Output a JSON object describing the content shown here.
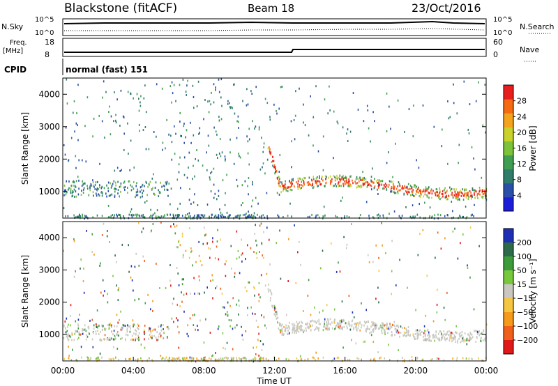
{
  "header": {
    "station": "Blackstone (fitACF)",
    "beam": "Beam 18",
    "date": "23/Oct/2016"
  },
  "panels": {
    "nsky_label": "N.Sky",
    "nsearch_label": "N.Search",
    "nsky_ticks": [
      "10^5",
      "10^0"
    ],
    "nsearch_ticks": [
      "10^5",
      "10^0"
    ],
    "freq_label": "Freq.",
    "freq_unit": "[MHz]",
    "freq_ticks": [
      "18",
      "8"
    ],
    "nave_label": "Nave",
    "nave_ticks": [
      "60",
      "0"
    ],
    "cpid_label": "CPID",
    "cpid_value": "normal (fast) 151"
  },
  "chart_data": [
    {
      "type": "heatmap",
      "title": "",
      "ylabel": "Slant Range [km]",
      "xlabel": "",
      "ylim": [
        180,
        4500
      ],
      "xlim": [
        0,
        24
      ],
      "y_ticks": [
        "1000",
        "2000",
        "3000",
        "4000"
      ],
      "colorbar_label": "Power [dB]",
      "colorbar_ticks": [
        "4",
        "8",
        "12",
        "16",
        "20",
        "24",
        "28"
      ],
      "colorbar_range": [
        0,
        32
      ],
      "colors": [
        "#1d1dd9",
        "#2a4fa8",
        "#2f7c6a",
        "#3f9e52",
        "#7cc23a",
        "#c8d22a",
        "#f4a41c",
        "#f56a12",
        "#e81e1e"
      ]
    },
    {
      "type": "heatmap",
      "title": "",
      "ylabel": "Slant Range [km]",
      "xlabel": "Time UT",
      "ylim": [
        180,
        4500
      ],
      "xlim": [
        0,
        24
      ],
      "y_ticks": [
        "1000",
        "2000",
        "3000",
        "4000"
      ],
      "x_ticks": [
        "00:00",
        "04:00",
        "08:00",
        "12:00",
        "16:00",
        "20:00",
        "00:00"
      ],
      "colorbar_label": "Velocity [m s⁻¹]",
      "colorbar_ticks": [
        "200",
        "100",
        "50",
        "15",
        "−15",
        "−50",
        "−100",
        "−200"
      ],
      "colors": [
        "#1f2fb5",
        "#2c6a4a",
        "#3c9c3c",
        "#78c83c",
        "#c8c8c0",
        "#f5c642",
        "#f59a1a",
        "#f0601a",
        "#e01818"
      ]
    }
  ]
}
